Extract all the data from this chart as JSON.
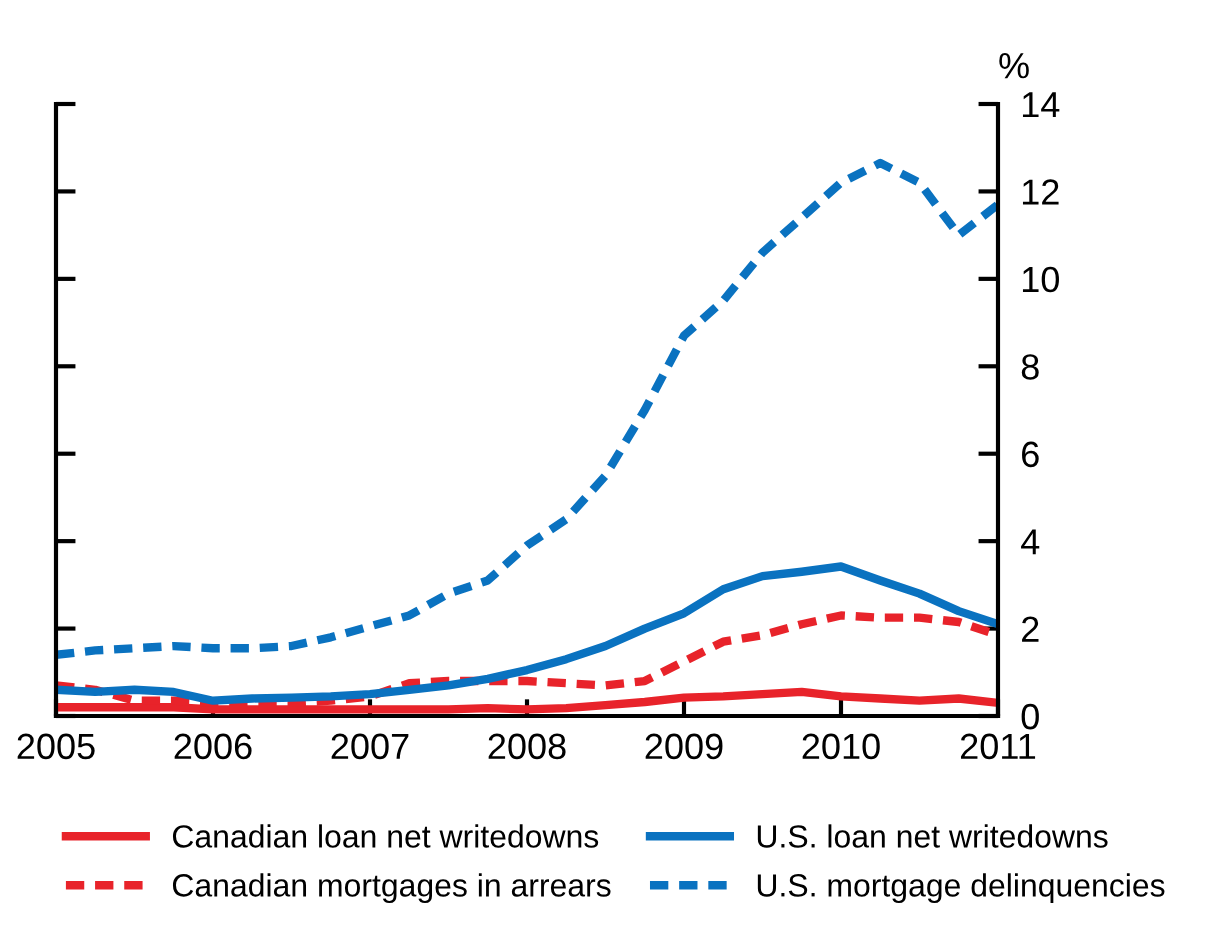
{
  "chart_data": {
    "type": "line",
    "ylabel": "%",
    "x": [
      2005.0,
      2005.25,
      2005.5,
      2005.75,
      2006.0,
      2006.25,
      2006.5,
      2006.75,
      2007.0,
      2007.25,
      2007.5,
      2007.75,
      2008.0,
      2008.25,
      2008.5,
      2008.75,
      2009.0,
      2009.25,
      2009.5,
      2009.75,
      2010.0,
      2010.25,
      2010.5,
      2010.75,
      2011.0
    ],
    "series": [
      {
        "name": "Canadian loan net writedowns",
        "color": "#e8232a",
        "line_style": "solid",
        "values": [
          0.2,
          0.2,
          0.2,
          0.2,
          0.15,
          0.15,
          0.15,
          0.15,
          0.15,
          0.15,
          0.15,
          0.18,
          0.15,
          0.18,
          0.25,
          0.32,
          0.42,
          0.45,
          0.5,
          0.55,
          0.45,
          0.4,
          0.35,
          0.4,
          0.3
        ]
      },
      {
        "name": "Canadian mortgages in arrears",
        "color": "#e8232a",
        "line_style": "dashed",
        "values": [
          0.7,
          0.6,
          0.35,
          0.35,
          0.3,
          0.3,
          0.3,
          0.35,
          0.45,
          0.75,
          0.8,
          0.8,
          0.8,
          0.75,
          0.7,
          0.8,
          1.25,
          1.7,
          1.85,
          2.1,
          2.3,
          2.25,
          2.25,
          2.15,
          1.85
        ]
      },
      {
        "name": "U.S. loan net writedowns",
        "color": "#0a72c0",
        "line_style": "solid",
        "values": [
          0.6,
          0.55,
          0.6,
          0.55,
          0.35,
          0.4,
          0.42,
          0.45,
          0.5,
          0.6,
          0.7,
          0.85,
          1.05,
          1.3,
          1.6,
          2.0,
          2.35,
          2.9,
          3.2,
          3.3,
          3.42,
          3.1,
          2.8,
          2.4,
          2.1
        ]
      },
      {
        "name": "U.S. mortgage delinquencies",
        "color": "#0a72c0",
        "line_style": "dashed",
        "values": [
          1.4,
          1.5,
          1.55,
          1.6,
          1.55,
          1.55,
          1.6,
          1.8,
          2.05,
          2.3,
          2.8,
          3.1,
          3.9,
          4.5,
          5.5,
          7.0,
          8.7,
          9.5,
          10.6,
          11.4,
          12.2,
          12.65,
          12.2,
          11.0,
          11.7
        ]
      }
    ],
    "xlim": [
      2005,
      2011
    ],
    "xticks": [
      2005,
      2006,
      2007,
      2008,
      2009,
      2010,
      2011
    ],
    "ylim": [
      0,
      14
    ],
    "yticks": [
      0,
      2,
      4,
      6,
      8,
      10,
      12,
      14
    ],
    "grid": false,
    "legend": "bottom"
  }
}
